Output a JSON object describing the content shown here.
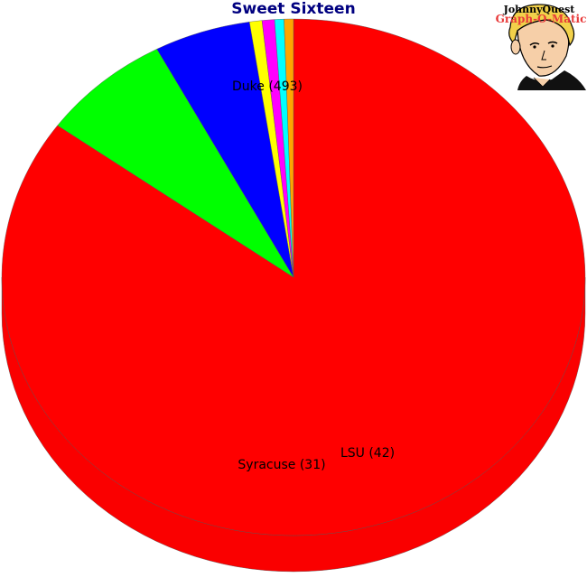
{
  "chart_data": {
    "type": "pie",
    "title": "Sweet Sixteen",
    "three_d": true,
    "slices": [
      {
        "name": "Duke",
        "value": 493,
        "label": "Duke (493)",
        "color": "#ff0000"
      },
      {
        "name": "LSU",
        "value": 42,
        "label": "LSU (42)",
        "color": "#00ff00"
      },
      {
        "name": "Syracuse",
        "value": 31,
        "label": "Syracuse (31)",
        "color": "#0000ff"
      },
      {
        "name": "",
        "value": 4,
        "label": "",
        "color": "#ffff00"
      },
      {
        "name": "",
        "value": 4,
        "label": "",
        "color": "#ff00ff"
      },
      {
        "name": "",
        "value": 3,
        "label": "",
        "color": "#00ffff"
      },
      {
        "name": "",
        "value": 3,
        "label": "",
        "color": "#ffa500"
      }
    ]
  },
  "logo": {
    "line1": "JohnnyQuest",
    "line2": "Graph-O-Matic"
  }
}
